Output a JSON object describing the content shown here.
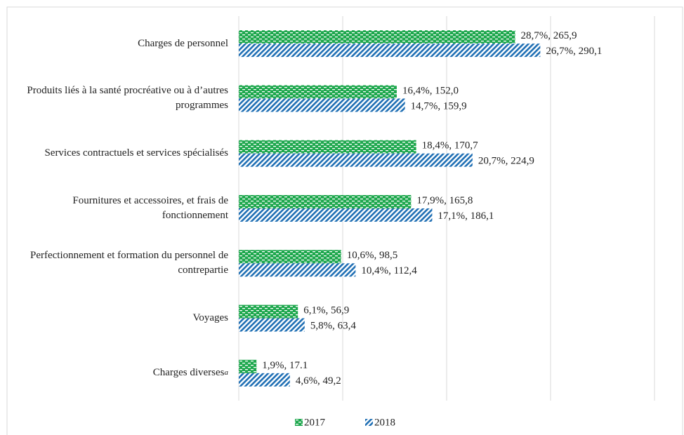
{
  "chart_data": {
    "type": "bar",
    "orientation": "horizontal",
    "categories": [
      "Charges de personnel",
      "Produits liés à la santé procréative ou à d’autres programmes",
      "Services contractuels et services spécialisés",
      "Fournitures et accessoires, et frais de fonctionnement",
      "Perfectionnement et formation du personnel de contrepartie",
      "Voyages",
      "Charges diverses"
    ],
    "footnote_marker": "a",
    "series": [
      {
        "name": "2017",
        "color": "#1fa84e",
        "pattern": "dashes",
        "values": [
          265.9,
          152.0,
          170.7,
          165.8,
          98.5,
          56.9,
          17.1
        ],
        "value_labels": [
          "28,7%, 265,9",
          "16,4%, 152,0",
          "18,4%, 170,7",
          "17,9%, 165,8",
          "10,6%, 98,5",
          "6,1%, 56,9",
          "1,9%, 17.1"
        ]
      },
      {
        "name": "2018",
        "color": "#1f6fb4",
        "pattern": "diagonal",
        "values": [
          290.1,
          159.9,
          224.9,
          186.1,
          112.4,
          63.4,
          49.2
        ],
        "value_labels": [
          "26,7%, 290,1",
          "14,7%, 159,9",
          "20,7%, 224,9",
          "17,1%, 186,1",
          "10,4%, 112,4",
          "5,8%, 63,4",
          "4,6%, 49,2"
        ]
      }
    ],
    "xlim": [
      0,
      400
    ],
    "xticks": [
      0,
      100,
      200,
      300,
      400
    ],
    "grid": true,
    "legend": "bottom"
  }
}
